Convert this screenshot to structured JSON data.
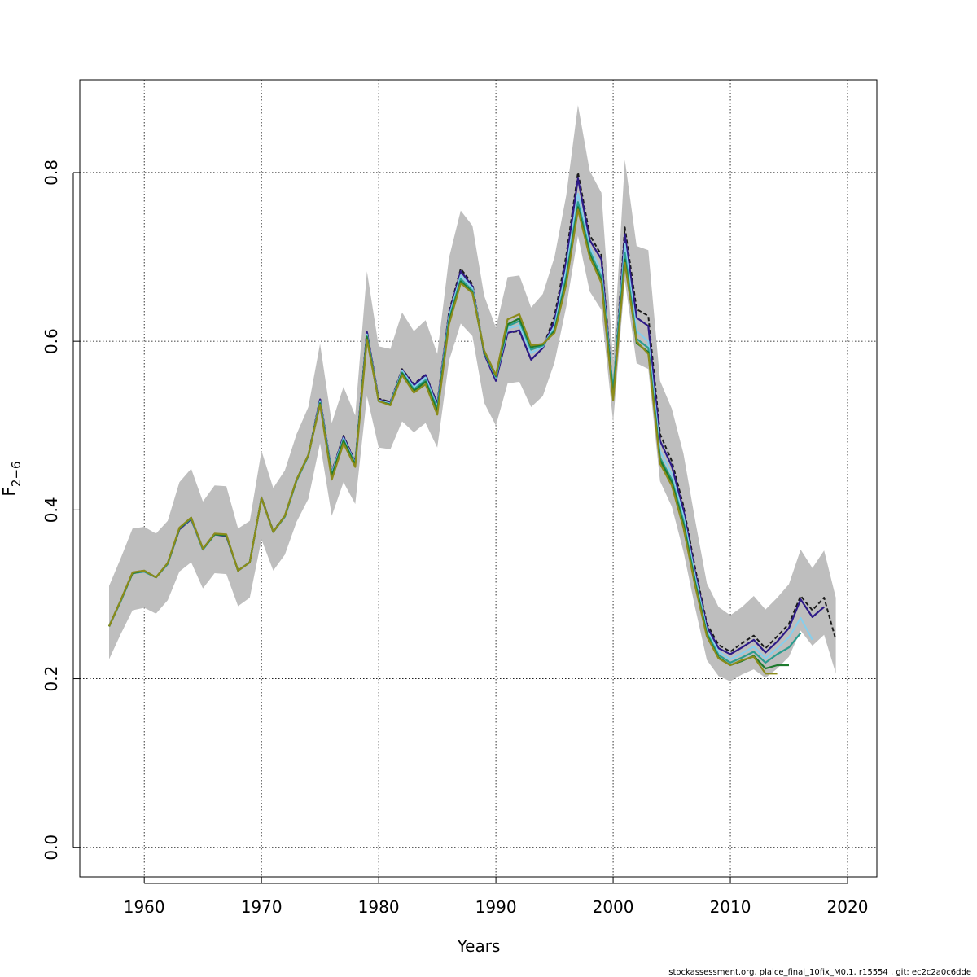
{
  "chart_data": {
    "type": "line",
    "title": "",
    "xlabel": "Years",
    "ylabel_main": "F",
    "ylabel_sub": "2−6",
    "xlim": [
      1954.5,
      2022.5
    ],
    "ylim": [
      -0.035,
      0.91
    ],
    "xticks": [
      1960,
      1970,
      1980,
      1990,
      2000,
      2010,
      2020
    ],
    "yticks": [
      0.0,
      0.2,
      0.4,
      0.6,
      0.8
    ],
    "ytick_labels": [
      "0.0",
      "0.2",
      "0.4",
      "0.6",
      "0.8"
    ],
    "grid": true,
    "confidence_band": {
      "color": "#bebebe",
      "x": [
        1957,
        1958,
        1959,
        1960,
        1961,
        1962,
        1963,
        1964,
        1965,
        1966,
        1967,
        1968,
        1969,
        1970,
        1971,
        1972,
        1973,
        1974,
        1975,
        1976,
        1977,
        1978,
        1979,
        1980,
        1981,
        1982,
        1983,
        1984,
        1985,
        1986,
        1987,
        1988,
        1989,
        1990,
        1991,
        1992,
        1993,
        1994,
        1995,
        1996,
        1997,
        1998,
        1999,
        2000,
        2001,
        2002,
        2003,
        2004,
        2005,
        2006,
        2007,
        2008,
        2009,
        2010,
        2011,
        2012,
        2013,
        2014,
        2015,
        2016,
        2017,
        2018,
        2019
      ],
      "upper": [
        0.31,
        0.343,
        0.378,
        0.38,
        0.372,
        0.387,
        0.433,
        0.449,
        0.41,
        0.429,
        0.428,
        0.378,
        0.387,
        0.47,
        0.426,
        0.447,
        0.49,
        0.522,
        0.597,
        0.503,
        0.546,
        0.512,
        0.683,
        0.594,
        0.591,
        0.634,
        0.612,
        0.625,
        0.585,
        0.699,
        0.755,
        0.737,
        0.654,
        0.616,
        0.676,
        0.678,
        0.64,
        0.656,
        0.7,
        0.773,
        0.88,
        0.802,
        0.776,
        0.577,
        0.815,
        0.713,
        0.708,
        0.553,
        0.52,
        0.467,
        0.388,
        0.313,
        0.285,
        0.275,
        0.285,
        0.298,
        0.282,
        0.296,
        0.312,
        0.353,
        0.331,
        0.352,
        0.296
      ],
      "lower": [
        0.223,
        0.253,
        0.281,
        0.284,
        0.277,
        0.293,
        0.327,
        0.338,
        0.307,
        0.325,
        0.324,
        0.286,
        0.296,
        0.365,
        0.328,
        0.347,
        0.386,
        0.413,
        0.479,
        0.393,
        0.433,
        0.407,
        0.535,
        0.474,
        0.472,
        0.505,
        0.492,
        0.503,
        0.474,
        0.577,
        0.621,
        0.606,
        0.527,
        0.5,
        0.55,
        0.552,
        0.522,
        0.535,
        0.575,
        0.641,
        0.725,
        0.659,
        0.637,
        0.504,
        0.672,
        0.574,
        0.567,
        0.434,
        0.404,
        0.351,
        0.284,
        0.222,
        0.203,
        0.197,
        0.205,
        0.211,
        0.201,
        0.212,
        0.226,
        0.257,
        0.239,
        0.252,
        0.206
      ]
    },
    "series": [
      {
        "color": "#1a1a1a",
        "dashed": true,
        "x": [
          1957,
          1958,
          1959,
          1960,
          1961,
          1962,
          1963,
          1964,
          1965,
          1966,
          1967,
          1968,
          1969,
          1970,
          1971,
          1972,
          1973,
          1974,
          1975,
          1976,
          1977,
          1978,
          1979,
          1980,
          1981,
          1982,
          1983,
          1984,
          1985,
          1986,
          1987,
          1988,
          1989,
          1990,
          1991,
          1992,
          1993,
          1994,
          1995,
          1996,
          1997,
          1998,
          1999,
          2000,
          2001,
          2002,
          2003,
          2004,
          2005,
          2006,
          2007,
          2008,
          2009,
          2010,
          2011,
          2012,
          2013,
          2014,
          2015,
          2016,
          2017,
          2018,
          2019
        ],
        "values": [
          0.262,
          0.293,
          0.326,
          0.328,
          0.32,
          0.336,
          0.378,
          0.39,
          0.354,
          0.372,
          0.37,
          0.328,
          0.338,
          0.415,
          0.375,
          0.393,
          0.436,
          0.465,
          0.532,
          0.445,
          0.488,
          0.457,
          0.612,
          0.532,
          0.528,
          0.567,
          0.549,
          0.561,
          0.526,
          0.635,
          0.686,
          0.668,
          0.586,
          0.555,
          0.61,
          0.612,
          0.578,
          0.592,
          0.63,
          0.702,
          0.8,
          0.726,
          0.702,
          0.538,
          0.735,
          0.638,
          0.63,
          0.49,
          0.458,
          0.405,
          0.331,
          0.265,
          0.24,
          0.232,
          0.242,
          0.251,
          0.236,
          0.25,
          0.265,
          0.298,
          0.281,
          0.296,
          0.246
        ]
      },
      {
        "color": "#2e1a87",
        "x": [
          1957,
          1958,
          1959,
          1960,
          1961,
          1962,
          1963,
          1964,
          1965,
          1966,
          1967,
          1968,
          1969,
          1970,
          1971,
          1972,
          1973,
          1974,
          1975,
          1976,
          1977,
          1978,
          1979,
          1980,
          1981,
          1982,
          1983,
          1984,
          1985,
          1986,
          1987,
          1988,
          1989,
          1990,
          1991,
          1992,
          1993,
          1994,
          1995,
          1996,
          1997,
          1998,
          1999,
          2000,
          2001,
          2002,
          2003,
          2004,
          2005,
          2006,
          2007,
          2008,
          2009,
          2010,
          2011,
          2012,
          2013,
          2014,
          2015,
          2016,
          2017,
          2018
        ],
        "values": [
          0.262,
          0.292,
          0.325,
          0.327,
          0.32,
          0.336,
          0.377,
          0.389,
          0.353,
          0.371,
          0.369,
          0.328,
          0.338,
          0.414,
          0.374,
          0.392,
          0.435,
          0.464,
          0.531,
          0.444,
          0.487,
          0.456,
          0.611,
          0.531,
          0.527,
          0.566,
          0.548,
          0.56,
          0.525,
          0.632,
          0.683,
          0.665,
          0.585,
          0.553,
          0.61,
          0.613,
          0.578,
          0.592,
          0.624,
          0.695,
          0.793,
          0.72,
          0.697,
          0.535,
          0.727,
          0.628,
          0.618,
          0.482,
          0.452,
          0.4,
          0.326,
          0.262,
          0.236,
          0.229,
          0.237,
          0.246,
          0.231,
          0.244,
          0.26,
          0.294,
          0.273,
          0.285
        ]
      },
      {
        "color": "#87ceeb",
        "x": [
          1957,
          1958,
          1959,
          1960,
          1961,
          1962,
          1963,
          1964,
          1965,
          1966,
          1967,
          1968,
          1969,
          1970,
          1971,
          1972,
          1973,
          1974,
          1975,
          1976,
          1977,
          1978,
          1979,
          1980,
          1981,
          1982,
          1983,
          1984,
          1985,
          1986,
          1987,
          1988,
          1989,
          1990,
          1991,
          1992,
          1993,
          1994,
          1995,
          1996,
          1997,
          1998,
          1999,
          2000,
          2001,
          2002,
          2003,
          2004,
          2005,
          2006,
          2007,
          2008,
          2009,
          2010,
          2011,
          2012,
          2013,
          2014,
          2015,
          2016,
          2017
        ],
        "values": [
          0.262,
          0.292,
          0.325,
          0.327,
          0.32,
          0.336,
          0.378,
          0.39,
          0.353,
          0.371,
          0.37,
          0.328,
          0.338,
          0.414,
          0.374,
          0.392,
          0.435,
          0.464,
          0.529,
          0.443,
          0.485,
          0.455,
          0.608,
          0.53,
          0.526,
          0.565,
          0.545,
          0.557,
          0.522,
          0.629,
          0.678,
          0.663,
          0.587,
          0.557,
          0.615,
          0.619,
          0.586,
          0.594,
          0.618,
          0.685,
          0.775,
          0.712,
          0.683,
          0.54,
          0.715,
          0.612,
          0.6,
          0.47,
          0.442,
          0.393,
          0.321,
          0.257,
          0.232,
          0.223,
          0.23,
          0.238,
          0.224,
          0.236,
          0.249,
          0.272,
          0.246
        ]
      },
      {
        "color": "#2a9d8f",
        "x": [
          1957,
          1958,
          1959,
          1960,
          1961,
          1962,
          1963,
          1964,
          1965,
          1966,
          1967,
          1968,
          1969,
          1970,
          1971,
          1972,
          1973,
          1974,
          1975,
          1976,
          1977,
          1978,
          1979,
          1980,
          1981,
          1982,
          1983,
          1984,
          1985,
          1986,
          1987,
          1988,
          1989,
          1990,
          1991,
          1992,
          1993,
          1994,
          1995,
          1996,
          1997,
          1998,
          1999,
          2000,
          2001,
          2002,
          2003,
          2004,
          2005,
          2006,
          2007,
          2008,
          2009,
          2010,
          2011,
          2012,
          2013,
          2014,
          2015,
          2016
        ],
        "values": [
          0.262,
          0.292,
          0.325,
          0.327,
          0.32,
          0.336,
          0.378,
          0.39,
          0.353,
          0.371,
          0.37,
          0.328,
          0.338,
          0.414,
          0.374,
          0.392,
          0.435,
          0.464,
          0.527,
          0.441,
          0.483,
          0.454,
          0.606,
          0.529,
          0.525,
          0.563,
          0.543,
          0.554,
          0.52,
          0.626,
          0.674,
          0.66,
          0.587,
          0.558,
          0.618,
          0.624,
          0.59,
          0.595,
          0.614,
          0.677,
          0.765,
          0.707,
          0.676,
          0.542,
          0.705,
          0.603,
          0.592,
          0.462,
          0.436,
          0.387,
          0.316,
          0.254,
          0.228,
          0.219,
          0.225,
          0.232,
          0.219,
          0.229,
          0.237,
          0.254
        ]
      },
      {
        "color": "#1e7a2e",
        "x": [
          1957,
          1958,
          1959,
          1960,
          1961,
          1962,
          1963,
          1964,
          1965,
          1966,
          1967,
          1968,
          1969,
          1970,
          1971,
          1972,
          1973,
          1974,
          1975,
          1976,
          1977,
          1978,
          1979,
          1980,
          1981,
          1982,
          1983,
          1984,
          1985,
          1986,
          1987,
          1988,
          1989,
          1990,
          1991,
          1992,
          1993,
          1994,
          1995,
          1996,
          1997,
          1998,
          1999,
          2000,
          2001,
          2002,
          2003,
          2004,
          2005,
          2006,
          2007,
          2008,
          2009,
          2010,
          2011,
          2012,
          2013,
          2014,
          2015
        ],
        "values": [
          0.262,
          0.293,
          0.325,
          0.328,
          0.32,
          0.337,
          0.378,
          0.391,
          0.354,
          0.371,
          0.37,
          0.328,
          0.338,
          0.414,
          0.374,
          0.393,
          0.436,
          0.465,
          0.526,
          0.44,
          0.482,
          0.453,
          0.605,
          0.529,
          0.525,
          0.562,
          0.541,
          0.552,
          0.517,
          0.623,
          0.671,
          0.658,
          0.588,
          0.559,
          0.62,
          0.627,
          0.593,
          0.596,
          0.612,
          0.672,
          0.759,
          0.703,
          0.672,
          0.534,
          0.697,
          0.598,
          0.587,
          0.459,
          0.433,
          0.383,
          0.313,
          0.252,
          0.225,
          0.216,
          0.221,
          0.227,
          0.212,
          0.216,
          0.216
        ]
      },
      {
        "color": "#8b8b1a",
        "x": [
          1957,
          1958,
          1959,
          1960,
          1961,
          1962,
          1963,
          1964,
          1965,
          1966,
          1967,
          1968,
          1969,
          1970,
          1971,
          1972,
          1973,
          1974,
          1975,
          1976,
          1977,
          1978,
          1979,
          1980,
          1981,
          1982,
          1983,
          1984,
          1985,
          1986,
          1987,
          1988,
          1989,
          1990,
          1991,
          1992,
          1993,
          1994,
          1995,
          1996,
          1997,
          1998,
          1999,
          2000,
          2001,
          2002,
          2003,
          2004,
          2005,
          2006,
          2007,
          2008,
          2009,
          2010,
          2011,
          2012,
          2013,
          2014
        ],
        "values": [
          0.262,
          0.293,
          0.326,
          0.328,
          0.32,
          0.337,
          0.379,
          0.391,
          0.354,
          0.372,
          0.371,
          0.328,
          0.338,
          0.414,
          0.374,
          0.393,
          0.436,
          0.465,
          0.525,
          0.436,
          0.479,
          0.451,
          0.602,
          0.529,
          0.524,
          0.56,
          0.539,
          0.549,
          0.513,
          0.62,
          0.669,
          0.657,
          0.589,
          0.56,
          0.626,
          0.632,
          0.595,
          0.597,
          0.61,
          0.668,
          0.756,
          0.7,
          0.669,
          0.53,
          0.693,
          0.6,
          0.585,
          0.455,
          0.429,
          0.379,
          0.31,
          0.25,
          0.224,
          0.216,
          0.222,
          0.226,
          0.206,
          0.206
        ]
      }
    ]
  },
  "footer_text": "stockassessment.org, plaice_final_10fix_M0.1, r15554 , git: ec2c2a0c6dde"
}
